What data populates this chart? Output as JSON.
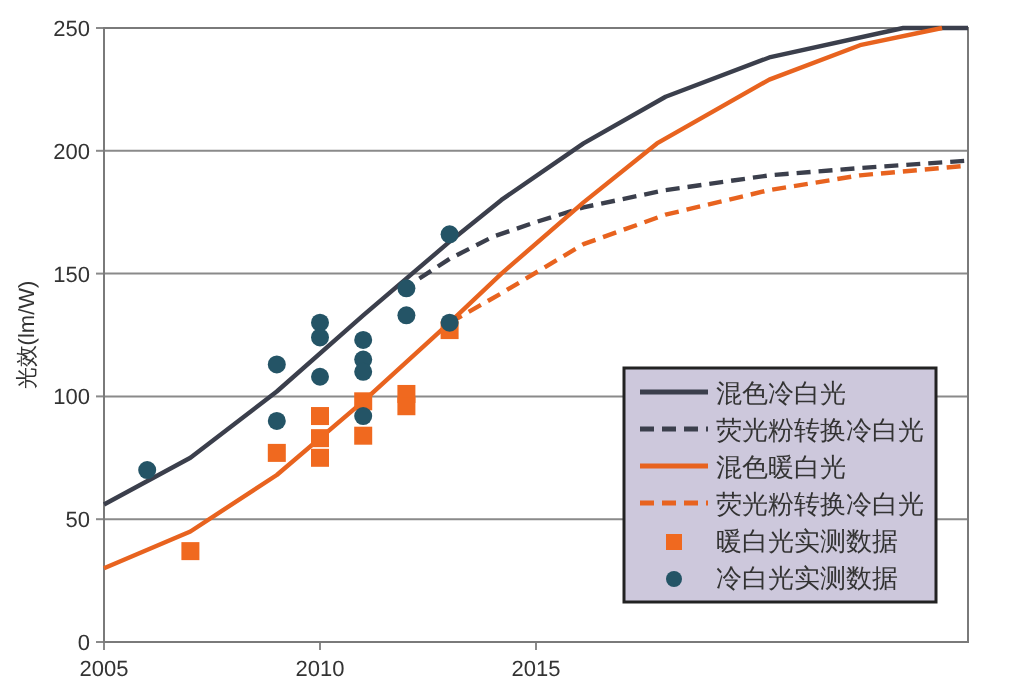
{
  "chart_data": {
    "type": "line",
    "ylabel": "光效(lm/W)",
    "xlim": [
      2005,
      2025
    ],
    "xticks": [
      2005,
      2010,
      2015
    ],
    "ylim": [
      0,
      250
    ],
    "yticks": [
      0,
      50,
      100,
      150,
      200,
      250
    ],
    "grid": "y",
    "legend": "bottom right",
    "series": [
      {
        "name": "混色冷白光",
        "type": "line",
        "line_style": "solid",
        "color": "#3b3f4c",
        "x": [
          2005,
          2007,
          2009,
          2011,
          2013,
          2014.2,
          2016.1,
          2018,
          2020.4,
          2023.5,
          2025
        ],
        "values": [
          56,
          75,
          102,
          133,
          163,
          180,
          203,
          222,
          238,
          250,
          250
        ]
      },
      {
        "name": "荧光粉转换冷白光",
        "type": "line",
        "line_style": "dashed",
        "color": "#3b3f4c",
        "x": [
          2012.3,
          2013,
          2014,
          2015,
          2016.1,
          2018,
          2020.4,
          2022.5,
          2025
        ],
        "values": [
          148,
          156,
          165,
          171,
          177,
          184,
          190,
          193,
          196
        ]
      },
      {
        "name": "混色暖白光",
        "type": "line",
        "line_style": "solid",
        "color": "#e8631f",
        "x": [
          2005,
          2007,
          2009,
          2011,
          2013,
          2014.2,
          2016.1,
          2017.8,
          2020.4,
          2022.5,
          2024.4
        ],
        "values": [
          30,
          45,
          68,
          98,
          130,
          150,
          179,
          203,
          229,
          243,
          250
        ]
      },
      {
        "name": "荧光粉转换冷白光",
        "type": "line",
        "line_style": "dashed",
        "color": "#e8631f",
        "x": [
          2013,
          2014.2,
          2016.1,
          2018,
          2020.4,
          2022.5,
          2025
        ],
        "values": [
          130,
          142,
          162,
          174,
          184,
          190,
          194
        ]
      },
      {
        "name": "暖白光实测数据",
        "type": "scatter",
        "marker": "square",
        "color": "#f0691f",
        "x": [
          2007,
          2009,
          2010,
          2010,
          2010,
          2011,
          2011,
          2012,
          2012,
          2013
        ],
        "values": [
          37,
          77,
          92,
          83,
          75,
          98,
          84,
          101,
          96,
          127
        ]
      },
      {
        "name": "冷白光实测数据",
        "type": "scatter",
        "marker": "circle",
        "color": "#245466",
        "x": [
          2006,
          2009,
          2009,
          2010,
          2010,
          2010,
          2011,
          2011,
          2011,
          2011,
          2012,
          2012,
          2013,
          2013
        ],
        "values": [
          70,
          113,
          90,
          130,
          124,
          108,
          123,
          115,
          110,
          92,
          144,
          133,
          166,
          130
        ]
      }
    ]
  }
}
